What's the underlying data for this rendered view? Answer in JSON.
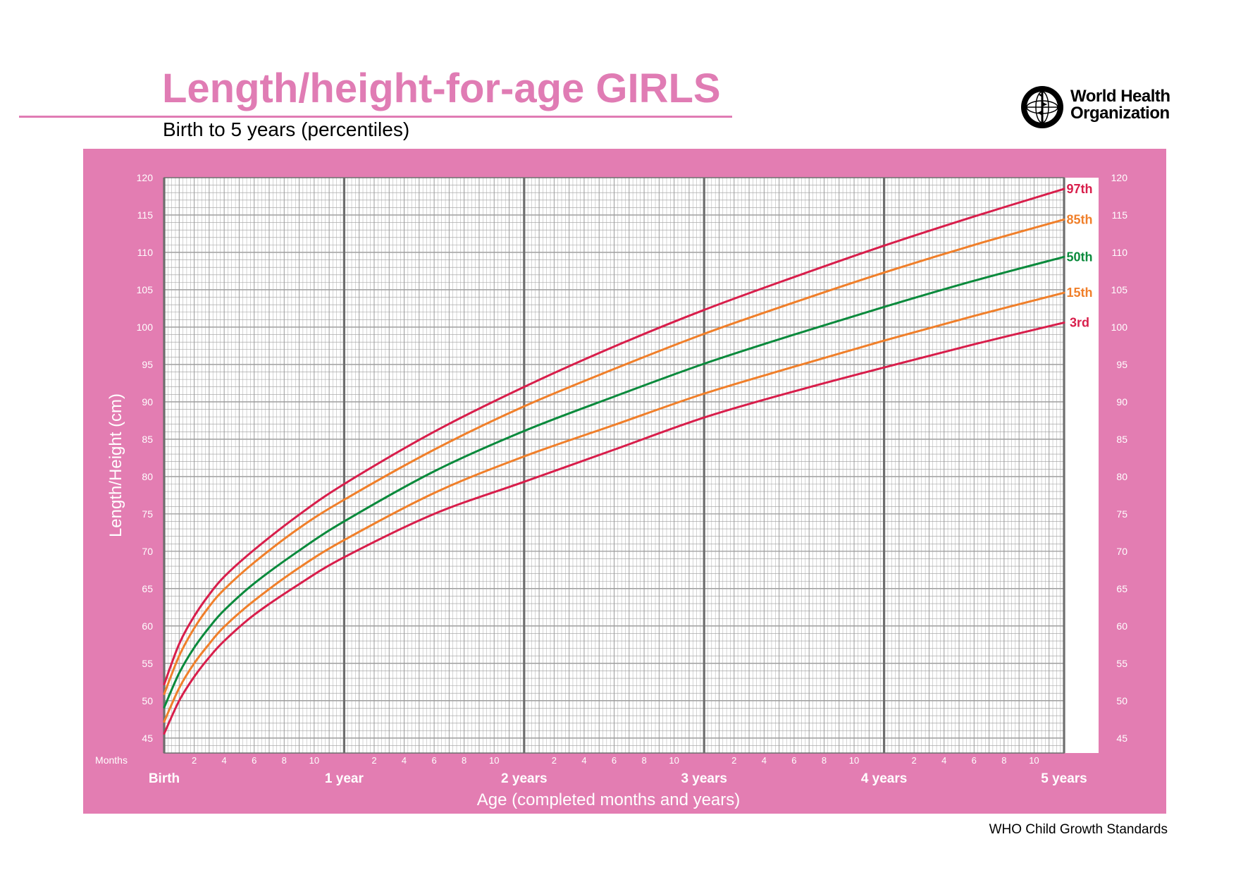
{
  "header": {
    "title": "Length/height-for-age GIRLS",
    "subtitle": "Birth to 5 years (percentiles)"
  },
  "logo": {
    "org_name_line1": "World Health",
    "org_name_line2": "Organization"
  },
  "footer": {
    "text": "WHO Child Growth Standards"
  },
  "colors": {
    "panel": "#e37db2",
    "title": "#e07cb4",
    "p3_p97": "#d81e4b",
    "p15_p85": "#f07f2a",
    "p50": "#0a8a3c",
    "grid_minor": "#9a9a9a",
    "grid_major": "#6e6e6e"
  },
  "chart_data": {
    "type": "line",
    "title": "Length/height-for-age GIRLS",
    "subtitle": "Birth to 5 years (percentiles)",
    "xlabel": "Age (completed months and years)",
    "ylabel": "Length/Height (cm)",
    "x_unit": "months",
    "xlim": [
      0,
      60
    ],
    "ylim": [
      43,
      120
    ],
    "y_ticks": [
      45,
      50,
      55,
      60,
      65,
      70,
      75,
      80,
      85,
      90,
      95,
      100,
      105,
      110,
      115,
      120
    ],
    "x_axis_prefix_label": "Months",
    "x_month_ticks": [
      2,
      4,
      6,
      8,
      10
    ],
    "x_year_labels": [
      "Birth",
      "1 year",
      "2 years",
      "3 years",
      "4 years",
      "5 years"
    ],
    "grid": true,
    "x": [
      0,
      1,
      2,
      3,
      4,
      6,
      9,
      12,
      18,
      24,
      30,
      36,
      42,
      48,
      54,
      60
    ],
    "series": [
      {
        "name": "97th",
        "color": "#d81e4b",
        "values": [
          52.2,
          57.6,
          61.3,
          64.2,
          66.6,
          70.2,
          74.9,
          79.0,
          86.0,
          92.0,
          97.4,
          102.3,
          106.7,
          110.9,
          114.8,
          118.5
        ]
      },
      {
        "name": "85th",
        "color": "#f07f2a",
        "values": [
          50.9,
          56.0,
          59.7,
          62.6,
          64.9,
          68.5,
          73.1,
          76.9,
          83.6,
          89.4,
          94.4,
          99.1,
          103.3,
          107.3,
          111.0,
          114.4
        ]
      },
      {
        "name": "50th",
        "color": "#0a8a3c",
        "values": [
          49.1,
          53.7,
          57.1,
          59.8,
          62.1,
          65.7,
          70.1,
          74.0,
          80.7,
          86.1,
          90.7,
          95.1,
          99.0,
          102.7,
          106.2,
          109.4
        ]
      },
      {
        "name": "15th",
        "color": "#f07f2a",
        "values": [
          47.2,
          51.7,
          55.0,
          57.6,
          59.9,
          63.4,
          67.8,
          71.5,
          77.8,
          82.7,
          86.9,
          91.1,
          94.7,
          98.2,
          101.5,
          104.6
        ]
      },
      {
        "name": "3rd",
        "color": "#d81e4b",
        "values": [
          45.6,
          50.0,
          53.2,
          55.8,
          58.0,
          61.5,
          65.6,
          69.2,
          75.0,
          79.3,
          83.6,
          87.9,
          91.4,
          94.6,
          97.7,
          100.6
        ]
      }
    ]
  }
}
